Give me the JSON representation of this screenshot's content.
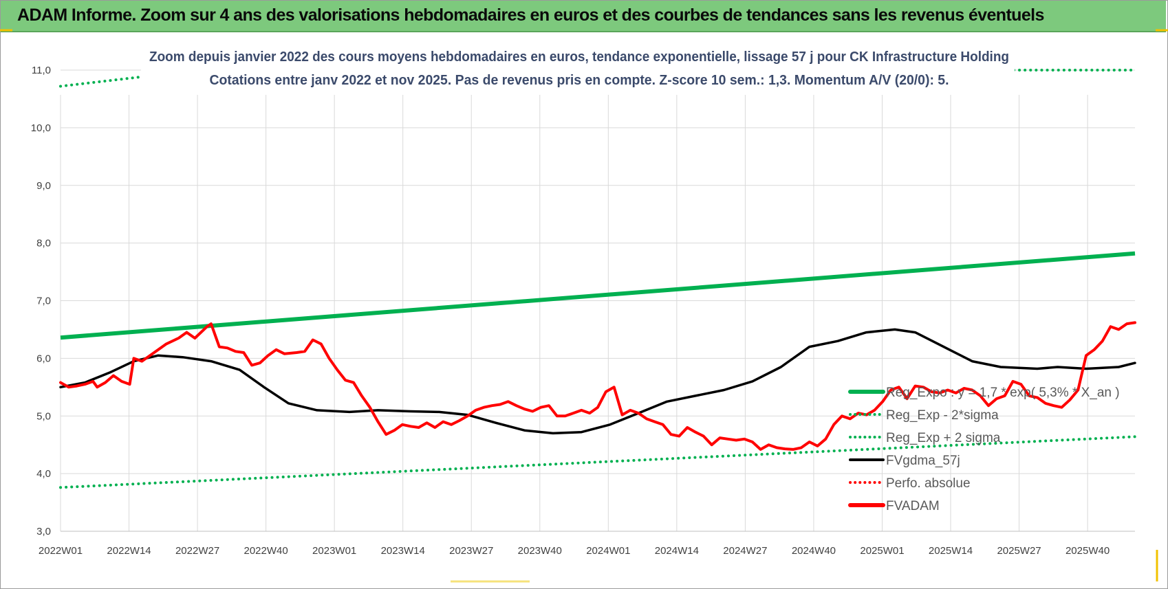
{
  "banner": {
    "title": "ADAM Informe. Zoom sur 4 ans des valorisations hebdomadaires en euros et des courbes de tendances sans les revenus éventuels"
  },
  "chart_data": {
    "type": "line",
    "title": "Zoom depuis janvier 2022 des cours moyens hebdomadaires en euros, tendance exponentielle, lissage 57 j pour CK Infrastructure Holding",
    "subtitle": "Cotations entre janv 2022 et nov 2025. Pas de revenus pris en compte. Z-score 10 sem.: 1,3. Momentum A/V (20/0): 5.",
    "xlabel": "",
    "ylabel": "",
    "ylim": [
      3.0,
      11.0
    ],
    "y_ticks": [
      "3,0",
      "4,0",
      "5,0",
      "6,0",
      "7,0",
      "8,0",
      "9,0",
      "10,0",
      "11,0"
    ],
    "x_ticks": [
      "2022W01",
      "2022W14",
      "2022W27",
      "2022W40",
      "2023W01",
      "2023W14",
      "2023W27",
      "2023W40",
      "2024W01",
      "2024W14",
      "2024W27",
      "2024W40",
      "2025W01",
      "2025W14",
      "2025W27",
      "2025W40"
    ],
    "grid": true,
    "legend_position": "bottom-right",
    "n_weeks": 205,
    "series": [
      {
        "name": "Reg_Expo : y = 1,7 * exp( 5,3% *  X_an )",
        "color": "#00b050",
        "style": "solid",
        "points": [
          [
            0,
            6.36
          ],
          [
            204,
            7.82
          ]
        ]
      },
      {
        "name": "Reg_Exp - 2*sigma",
        "color": "#00b050",
        "style": "dotted",
        "points": [
          [
            0,
            3.76
          ],
          [
            204,
            4.64
          ]
        ]
      },
      {
        "name": "Reg_Exp + 2 sigma",
        "color": "#00b050",
        "style": "dotted",
        "points": [
          [
            0,
            10.72
          ],
          [
            17,
            10.9
          ],
          [
            181,
            11.0
          ],
          [
            204,
            11.0
          ]
        ]
      },
      {
        "name": "FVgdma_57j",
        "color": "#000000",
        "style": "solid",
        "points": [
          [
            0,
            5.5
          ],
          [
            6,
            5.58
          ],
          [
            12,
            5.75
          ],
          [
            18,
            5.95
          ],
          [
            24,
            6.05
          ],
          [
            30,
            6.02
          ],
          [
            37,
            5.95
          ],
          [
            44,
            5.8
          ],
          [
            50,
            5.5
          ],
          [
            56,
            5.22
          ],
          [
            63,
            5.1
          ],
          [
            71,
            5.07
          ],
          [
            78,
            5.1
          ],
          [
            86,
            5.08
          ],
          [
            93,
            5.07
          ],
          [
            100,
            5.02
          ],
          [
            107,
            4.88
          ],
          [
            114,
            4.75
          ],
          [
            121,
            4.7
          ],
          [
            128,
            4.72
          ],
          [
            135,
            4.85
          ],
          [
            142,
            5.05
          ],
          [
            149,
            5.25
          ],
          [
            156,
            5.35
          ],
          [
            163,
            5.45
          ],
          [
            170,
            5.6
          ],
          [
            177,
            5.85
          ],
          [
            184,
            6.2
          ],
          [
            191,
            6.3
          ],
          [
            198,
            6.45
          ],
          [
            205,
            6.5
          ],
          [
            210,
            6.45
          ],
          [
            217,
            6.2
          ],
          [
            224,
            5.95
          ],
          [
            231,
            5.85
          ],
          [
            240,
            5.82
          ],
          [
            245,
            5.85
          ],
          [
            252,
            5.82
          ],
          [
            260,
            5.85
          ],
          [
            264,
            5.92
          ]
        ]
      },
      {
        "name": "Perfo. absolue",
        "color": "#ff0000",
        "style": "dotted",
        "points": []
      },
      {
        "name": "FVADAM",
        "color": "#ff0000",
        "style": "solid",
        "points": [
          [
            0,
            5.58
          ],
          [
            2,
            5.5
          ],
          [
            4,
            5.52
          ],
          [
            6,
            5.55
          ],
          [
            8,
            5.6
          ],
          [
            9,
            5.5
          ],
          [
            11,
            5.58
          ],
          [
            13,
            5.7
          ],
          [
            15,
            5.6
          ],
          [
            17,
            5.55
          ],
          [
            18,
            6.0
          ],
          [
            20,
            5.95
          ],
          [
            23,
            6.1
          ],
          [
            26,
            6.25
          ],
          [
            29,
            6.35
          ],
          [
            31,
            6.45
          ],
          [
            33,
            6.35
          ],
          [
            36,
            6.55
          ],
          [
            37,
            6.6
          ],
          [
            39,
            6.2
          ],
          [
            41,
            6.18
          ],
          [
            43,
            6.12
          ],
          [
            45,
            6.1
          ],
          [
            47,
            5.88
          ],
          [
            49,
            5.92
          ],
          [
            51,
            6.05
          ],
          [
            53,
            6.15
          ],
          [
            55,
            6.08
          ],
          [
            58,
            6.1
          ],
          [
            60,
            6.12
          ],
          [
            62,
            6.32
          ],
          [
            64,
            6.25
          ],
          [
            66,
            6.0
          ],
          [
            68,
            5.8
          ],
          [
            70,
            5.62
          ],
          [
            72,
            5.58
          ],
          [
            74,
            5.35
          ],
          [
            76,
            5.15
          ],
          [
            78,
            4.9
          ],
          [
            80,
            4.68
          ],
          [
            82,
            4.75
          ],
          [
            84,
            4.85
          ],
          [
            86,
            4.82
          ],
          [
            88,
            4.8
          ],
          [
            90,
            4.88
          ],
          [
            92,
            4.8
          ],
          [
            94,
            4.9
          ],
          [
            96,
            4.85
          ],
          [
            98,
            4.92
          ],
          [
            100,
            5.0
          ],
          [
            102,
            5.1
          ],
          [
            104,
            5.15
          ],
          [
            106,
            5.18
          ],
          [
            108,
            5.2
          ],
          [
            110,
            5.25
          ],
          [
            112,
            5.18
          ],
          [
            114,
            5.12
          ],
          [
            116,
            5.08
          ],
          [
            118,
            5.15
          ],
          [
            120,
            5.18
          ],
          [
            122,
            5.0
          ],
          [
            124,
            5.0
          ],
          [
            126,
            5.05
          ],
          [
            128,
            5.1
          ],
          [
            130,
            5.05
          ],
          [
            132,
            5.15
          ],
          [
            134,
            5.42
          ],
          [
            136,
            5.5
          ],
          [
            138,
            5.02
          ],
          [
            140,
            5.1
          ],
          [
            142,
            5.05
          ],
          [
            144,
            4.95
          ],
          [
            146,
            4.9
          ],
          [
            148,
            4.85
          ],
          [
            150,
            4.68
          ],
          [
            152,
            4.65
          ],
          [
            154,
            4.8
          ],
          [
            156,
            4.72
          ],
          [
            158,
            4.65
          ],
          [
            160,
            4.5
          ],
          [
            162,
            4.62
          ],
          [
            164,
            4.6
          ],
          [
            166,
            4.58
          ],
          [
            168,
            4.6
          ],
          [
            170,
            4.55
          ],
          [
            172,
            4.42
          ],
          [
            174,
            4.5
          ],
          [
            176,
            4.45
          ],
          [
            178,
            4.43
          ],
          [
            180,
            4.42
          ],
          [
            182,
            4.45
          ],
          [
            184,
            4.55
          ],
          [
            186,
            4.48
          ],
          [
            188,
            4.6
          ],
          [
            190,
            4.85
          ],
          [
            192,
            5.0
          ],
          [
            194,
            4.95
          ],
          [
            196,
            5.05
          ],
          [
            198,
            5.02
          ],
          [
            200,
            5.1
          ],
          [
            202,
            5.25
          ],
          [
            204,
            5.45
          ],
          [
            206,
            5.5
          ],
          [
            208,
            5.3
          ],
          [
            210,
            5.52
          ],
          [
            212,
            5.5
          ],
          [
            214,
            5.42
          ],
          [
            216,
            5.4
          ],
          [
            218,
            5.45
          ],
          [
            220,
            5.4
          ],
          [
            222,
            5.48
          ],
          [
            224,
            5.45
          ],
          [
            226,
            5.35
          ],
          [
            228,
            5.18
          ],
          [
            230,
            5.3
          ],
          [
            232,
            5.35
          ],
          [
            234,
            5.6
          ],
          [
            236,
            5.55
          ],
          [
            238,
            5.35
          ],
          [
            240,
            5.32
          ],
          [
            242,
            5.22
          ],
          [
            244,
            5.18
          ],
          [
            246,
            5.15
          ],
          [
            248,
            5.28
          ],
          [
            250,
            5.45
          ],
          [
            252,
            6.05
          ],
          [
            254,
            6.15
          ],
          [
            256,
            6.3
          ],
          [
            258,
            6.55
          ],
          [
            260,
            6.5
          ],
          [
            262,
            6.6
          ],
          [
            264,
            6.62
          ]
        ]
      }
    ]
  },
  "legend": {
    "items": [
      {
        "label": "Reg_Expo : y = 1,7 * exp( 5,3% *  X_an )"
      },
      {
        "label": "Reg_Exp - 2*sigma"
      },
      {
        "label": "Reg_Exp + 2 sigma"
      },
      {
        "label": "FVgdma_57j"
      },
      {
        "label": "Perfo. absolue"
      },
      {
        "label": "FVADAM"
      }
    ]
  }
}
